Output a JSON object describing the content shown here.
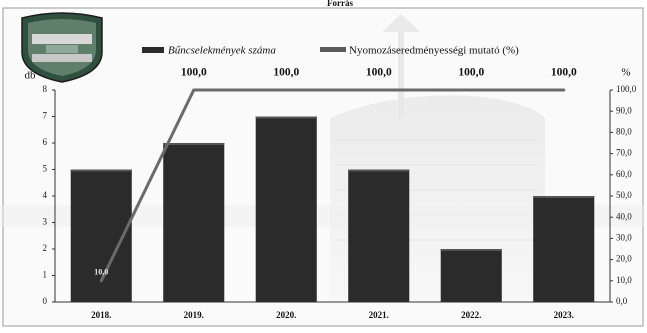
{
  "header_text": "Forrás",
  "chart_data": {
    "type": "bar",
    "categories": [
      "2018.",
      "2019.",
      "2020.",
      "2021.",
      "2022.",
      "2023."
    ],
    "series": [
      {
        "name": "Bűncselekmények száma",
        "type": "bar",
        "axis": "left",
        "values": [
          5,
          6,
          7,
          5,
          2,
          4
        ],
        "color": "#2b2b2b"
      },
      {
        "name": "Nyomozáseredményességi mutató (%)",
        "type": "line",
        "axis": "right",
        "values": [
          10.0,
          100.0,
          100.0,
          100.0,
          100.0,
          100.0
        ],
        "labels": [
          "10,0",
          "100,0",
          "100,0",
          "100,0",
          "100,0",
          "100,0"
        ],
        "color": "#6a6a6a"
      }
    ],
    "ylabel_left": "db",
    "ylabel_right": "%",
    "ylim_left": [
      0,
      8
    ],
    "ylim_right": [
      0,
      100
    ],
    "left_ticks": [
      "0",
      "1",
      "2",
      "3",
      "4",
      "5",
      "6",
      "7",
      "8"
    ],
    "right_ticks": [
      "0,0",
      "10,0",
      "20,0",
      "30,0",
      "40,0",
      "50,0",
      "60,0",
      "70,0",
      "80,0",
      "90,0",
      "100,0"
    ],
    "legend_position": "top",
    "grid": false
  }
}
